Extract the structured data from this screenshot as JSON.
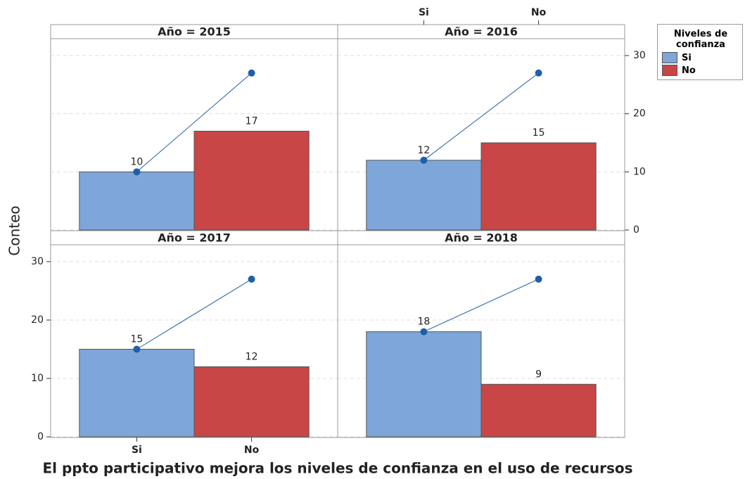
{
  "chart_data": {
    "type": "bar",
    "x_label": "El ppto participativo mejora los niveles de confianza en el uso de recursos",
    "y_label": "Conteo",
    "categories": [
      "Si",
      "No"
    ],
    "legend_title": "Niveles de confianza",
    "series": [
      {
        "name": "Si",
        "color": "#7ea6d8"
      },
      {
        "name": "No",
        "color": "#c84646"
      }
    ],
    "line_color": "#1f5fa8",
    "panels": [
      {
        "title": "Año = 2015",
        "values": [
          10,
          17
        ]
      },
      {
        "title": "Año = 2016",
        "values": [
          12,
          15
        ]
      },
      {
        "title": "Año = 2017",
        "values": [
          15,
          12
        ]
      },
      {
        "title": "Año = 2018",
        "values": [
          18,
          9
        ]
      }
    ],
    "ylim": [
      0,
      30
    ],
    "yticks": [
      0,
      10,
      20,
      30
    ],
    "grid": true
  }
}
